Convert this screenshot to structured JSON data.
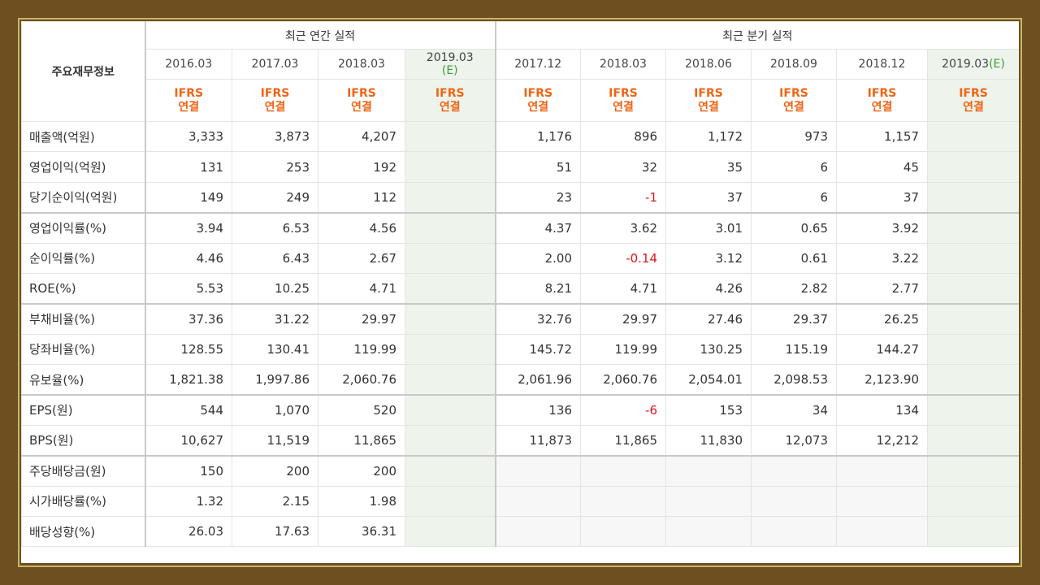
{
  "header": {
    "row_label": "주요재무정보",
    "annual_title": "최근 연간 실적",
    "quarterly_title": "최근 분기 실적",
    "annual_periods": [
      "2016.03",
      "2017.03",
      "2018.03",
      "2019.03(E)"
    ],
    "quarterly_periods": [
      "2017.12",
      "2018.03",
      "2018.06",
      "2018.09",
      "2018.12",
      "2019.03(E)"
    ],
    "standard_top": "IFRS",
    "standard_bottom": "연결"
  },
  "rows": [
    {
      "label": "매출액(억원)",
      "annual": [
        "3,333",
        "3,873",
        "4,207",
        ""
      ],
      "quarterly": [
        "1,176",
        "896",
        "1,172",
        "973",
        "1,157",
        ""
      ]
    },
    {
      "label": "영업이익(억원)",
      "annual": [
        "131",
        "253",
        "192",
        ""
      ],
      "quarterly": [
        "51",
        "32",
        "35",
        "6",
        "45",
        ""
      ]
    },
    {
      "label": "당기순이익(억원)",
      "annual": [
        "149",
        "249",
        "112",
        ""
      ],
      "quarterly": [
        "23",
        "-1",
        "37",
        "6",
        "37",
        ""
      ]
    },
    {
      "label": "영업이익률(%)",
      "annual": [
        "3.94",
        "6.53",
        "4.56",
        ""
      ],
      "quarterly": [
        "4.37",
        "3.62",
        "3.01",
        "0.65",
        "3.92",
        ""
      ]
    },
    {
      "label": "순이익률(%)",
      "annual": [
        "4.46",
        "6.43",
        "2.67",
        ""
      ],
      "quarterly": [
        "2.00",
        "-0.14",
        "3.12",
        "0.61",
        "3.22",
        ""
      ]
    },
    {
      "label": "ROE(%)",
      "annual": [
        "5.53",
        "10.25",
        "4.71",
        ""
      ],
      "quarterly": [
        "8.21",
        "4.71",
        "4.26",
        "2.82",
        "2.77",
        ""
      ]
    },
    {
      "label": "부채비율(%)",
      "annual": [
        "37.36",
        "31.22",
        "29.97",
        ""
      ],
      "quarterly": [
        "32.76",
        "29.97",
        "27.46",
        "29.37",
        "26.25",
        ""
      ]
    },
    {
      "label": "당좌비율(%)",
      "annual": [
        "128.55",
        "130.41",
        "119.99",
        ""
      ],
      "quarterly": [
        "145.72",
        "119.99",
        "130.25",
        "115.19",
        "144.27",
        ""
      ]
    },
    {
      "label": "유보율(%)",
      "annual": [
        "1,821.38",
        "1,997.86",
        "2,060.76",
        ""
      ],
      "quarterly": [
        "2,061.96",
        "2,060.76",
        "2,054.01",
        "2,098.53",
        "2,123.90",
        ""
      ]
    },
    {
      "label": "EPS(원)",
      "annual": [
        "544",
        "1,070",
        "520",
        ""
      ],
      "quarterly": [
        "136",
        "-6",
        "153",
        "34",
        "134",
        ""
      ]
    },
    {
      "label": "BPS(원)",
      "annual": [
        "10,627",
        "11,519",
        "11,865",
        ""
      ],
      "quarterly": [
        "11,873",
        "11,865",
        "11,830",
        "12,073",
        "12,212",
        ""
      ]
    },
    {
      "label": "주당배당금(원)",
      "annual": [
        "150",
        "200",
        "200",
        ""
      ],
      "quarterly": [
        "",
        "",
        "",
        "",
        "",
        ""
      ]
    },
    {
      "label": "시가배당률(%)",
      "annual": [
        "1.32",
        "2.15",
        "1.98",
        ""
      ],
      "quarterly": [
        "",
        "",
        "",
        "",
        "",
        ""
      ]
    },
    {
      "label": "배당성향(%)",
      "annual": [
        "26.03",
        "17.63",
        "36.31",
        ""
      ],
      "quarterly": [
        "",
        "",
        "",
        "",
        "",
        ""
      ]
    }
  ],
  "colors": {
    "frame_bg": "#6e4f1f",
    "ifrs": "#f06414",
    "estimate_tag": "#3b9c3b",
    "negative": "#e0151b",
    "estimate_bg": "#eef4ec"
  }
}
